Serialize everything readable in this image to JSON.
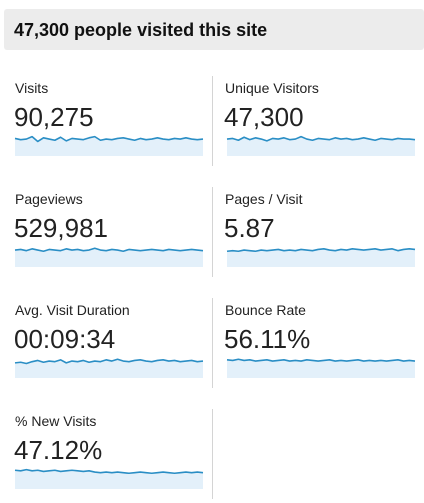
{
  "headline": "47,300 people visited this site",
  "colors": {
    "sparkline_stroke": "#2a8ec5",
    "sparkline_fill": "#e3f0fa",
    "headline_bg": "#ececec"
  },
  "metrics": [
    {
      "id": "visits",
      "label": "Visits",
      "value": "90,275",
      "trend": [
        0.55,
        0.45,
        0.5,
        0.7,
        0.3,
        0.6,
        0.5,
        0.4,
        0.65,
        0.35,
        0.55,
        0.5,
        0.45,
        0.6,
        0.7,
        0.4,
        0.5,
        0.45,
        0.55,
        0.6,
        0.5,
        0.4,
        0.55,
        0.45,
        0.5,
        0.6,
        0.5,
        0.45,
        0.55,
        0.5,
        0.6,
        0.5,
        0.45,
        0.5
      ]
    },
    {
      "id": "unique-visitors",
      "label": "Unique Visitors",
      "value": "47,300",
      "trend": [
        0.5,
        0.55,
        0.4,
        0.65,
        0.45,
        0.6,
        0.5,
        0.35,
        0.55,
        0.5,
        0.6,
        0.45,
        0.5,
        0.7,
        0.5,
        0.4,
        0.55,
        0.5,
        0.45,
        0.6,
        0.5,
        0.55,
        0.45,
        0.5,
        0.6,
        0.5,
        0.4,
        0.55,
        0.5,
        0.45,
        0.55,
        0.5,
        0.5,
        0.45
      ]
    },
    {
      "id": "pageviews",
      "label": "Pageviews",
      "value": "529,981",
      "trend": [
        0.5,
        0.55,
        0.45,
        0.6,
        0.5,
        0.4,
        0.55,
        0.5,
        0.45,
        0.6,
        0.5,
        0.55,
        0.45,
        0.5,
        0.65,
        0.5,
        0.45,
        0.55,
        0.5,
        0.4,
        0.55,
        0.5,
        0.45,
        0.5,
        0.55,
        0.5,
        0.45,
        0.55,
        0.5,
        0.45,
        0.5,
        0.55,
        0.5,
        0.45
      ]
    },
    {
      "id": "pages-per-visit",
      "label": "Pages / Visit",
      "value": "5.87",
      "trend": [
        0.4,
        0.45,
        0.4,
        0.5,
        0.45,
        0.4,
        0.5,
        0.45,
        0.5,
        0.55,
        0.45,
        0.5,
        0.45,
        0.55,
        0.5,
        0.45,
        0.55,
        0.6,
        0.5,
        0.45,
        0.55,
        0.5,
        0.6,
        0.55,
        0.5,
        0.55,
        0.6,
        0.5,
        0.55,
        0.6,
        0.45,
        0.55,
        0.6,
        0.55
      ]
    },
    {
      "id": "avg-visit-duration",
      "label": "Avg. Visit Duration",
      "value": "00:09:34",
      "trend": [
        0.35,
        0.4,
        0.3,
        0.45,
        0.55,
        0.4,
        0.5,
        0.45,
        0.6,
        0.35,
        0.5,
        0.45,
        0.55,
        0.4,
        0.5,
        0.45,
        0.6,
        0.5,
        0.65,
        0.5,
        0.45,
        0.55,
        0.6,
        0.5,
        0.45,
        0.55,
        0.6,
        0.5,
        0.55,
        0.45,
        0.5,
        0.55,
        0.45,
        0.5
      ]
    },
    {
      "id": "bounce-rate",
      "label": "Bounce Rate",
      "value": "56.11%",
      "trend": [
        0.6,
        0.55,
        0.65,
        0.55,
        0.6,
        0.5,
        0.55,
        0.6,
        0.5,
        0.55,
        0.6,
        0.5,
        0.55,
        0.5,
        0.6,
        0.55,
        0.5,
        0.55,
        0.6,
        0.5,
        0.55,
        0.5,
        0.55,
        0.6,
        0.5,
        0.55,
        0.5,
        0.55,
        0.5,
        0.55,
        0.6,
        0.5,
        0.55,
        0.5
      ]
    },
    {
      "id": "new-visits",
      "label": "% New Visits",
      "value": "47.12%",
      "trend": [
        0.65,
        0.6,
        0.7,
        0.6,
        0.65,
        0.55,
        0.6,
        0.65,
        0.55,
        0.6,
        0.65,
        0.6,
        0.55,
        0.6,
        0.5,
        0.45,
        0.5,
        0.45,
        0.5,
        0.45,
        0.4,
        0.45,
        0.5,
        0.45,
        0.4,
        0.45,
        0.5,
        0.45,
        0.4,
        0.45,
        0.5,
        0.45,
        0.5,
        0.45
      ]
    }
  ]
}
